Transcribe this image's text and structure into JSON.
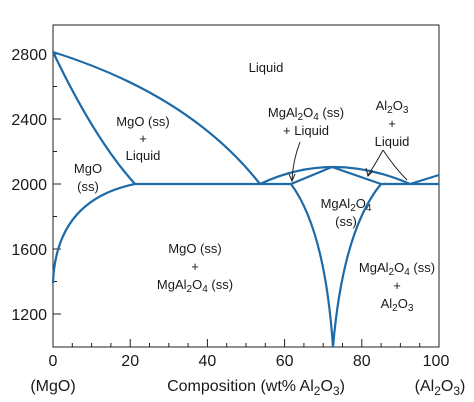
{
  "x_axis": {
    "ticks": [
      "0",
      "20",
      "40",
      "60",
      "80",
      "100"
    ],
    "title_prefix": "Composition (wt% Al",
    "title_sub": "2",
    "title_mid": "O",
    "title_sub2": "3",
    "title_suffix": ")",
    "left_end": "(MgO)",
    "right_end_prefix": "(Al",
    "right_end_sub": "2",
    "right_end_mid": "O",
    "right_end_sub2": "3",
    "right_end_suffix": ")"
  },
  "y_axis": {
    "ticks": [
      "1200",
      "1600",
      "2000",
      "2400",
      "2800"
    ]
  },
  "regions": {
    "liquid": "Liquid",
    "mgo_ss_liquid_1": "MgO (ss)",
    "mgo_ss_liquid_2": "+",
    "mgo_ss_liquid_3": "Liquid",
    "mgo_ss_1": "MgO",
    "mgo_ss_2": "(ss)",
    "spinel_liquid_1a": "MgAl",
    "spinel_liquid_1b": "2",
    "spinel_liquid_1c": "O",
    "spinel_liquid_1d": "4",
    "spinel_liquid_1e": " (ss)",
    "spinel_liquid_2": "+ Liquid",
    "alumina_liquid_1a": "Al",
    "alumina_liquid_1b": "2",
    "alumina_liquid_1c": "O",
    "alumina_liquid_1d": "3",
    "alumina_liquid_2": "+",
    "alumina_liquid_3": "Liquid",
    "spinel_ss_1a": "MgAl",
    "spinel_ss_1b": "2",
    "spinel_ss_1c": "O",
    "spinel_ss_1d": "4",
    "spinel_ss_2": "(ss)",
    "mgo_spinel_1": "MgO (ss)",
    "mgo_spinel_2": "+",
    "mgo_spinel_3a": "MgAl",
    "mgo_spinel_3b": "2",
    "mgo_spinel_3c": "O",
    "mgo_spinel_3d": "4",
    "mgo_spinel_3e": " (ss)",
    "spinel_alumina_1a": "MgAl",
    "spinel_alumina_1b": "2",
    "spinel_alumina_1c": "O",
    "spinel_alumina_1d": "4",
    "spinel_alumina_1e": " (ss)",
    "spinel_alumina_2": "+",
    "spinel_alumina_3a": "Al",
    "spinel_alumina_3b": "2",
    "spinel_alumina_3c": "O",
    "spinel_alumina_3d": "3"
  },
  "colors": {
    "phase_boundary": "#1d6aa8",
    "text": "#1a1a1a",
    "frame": "#222222"
  }
}
